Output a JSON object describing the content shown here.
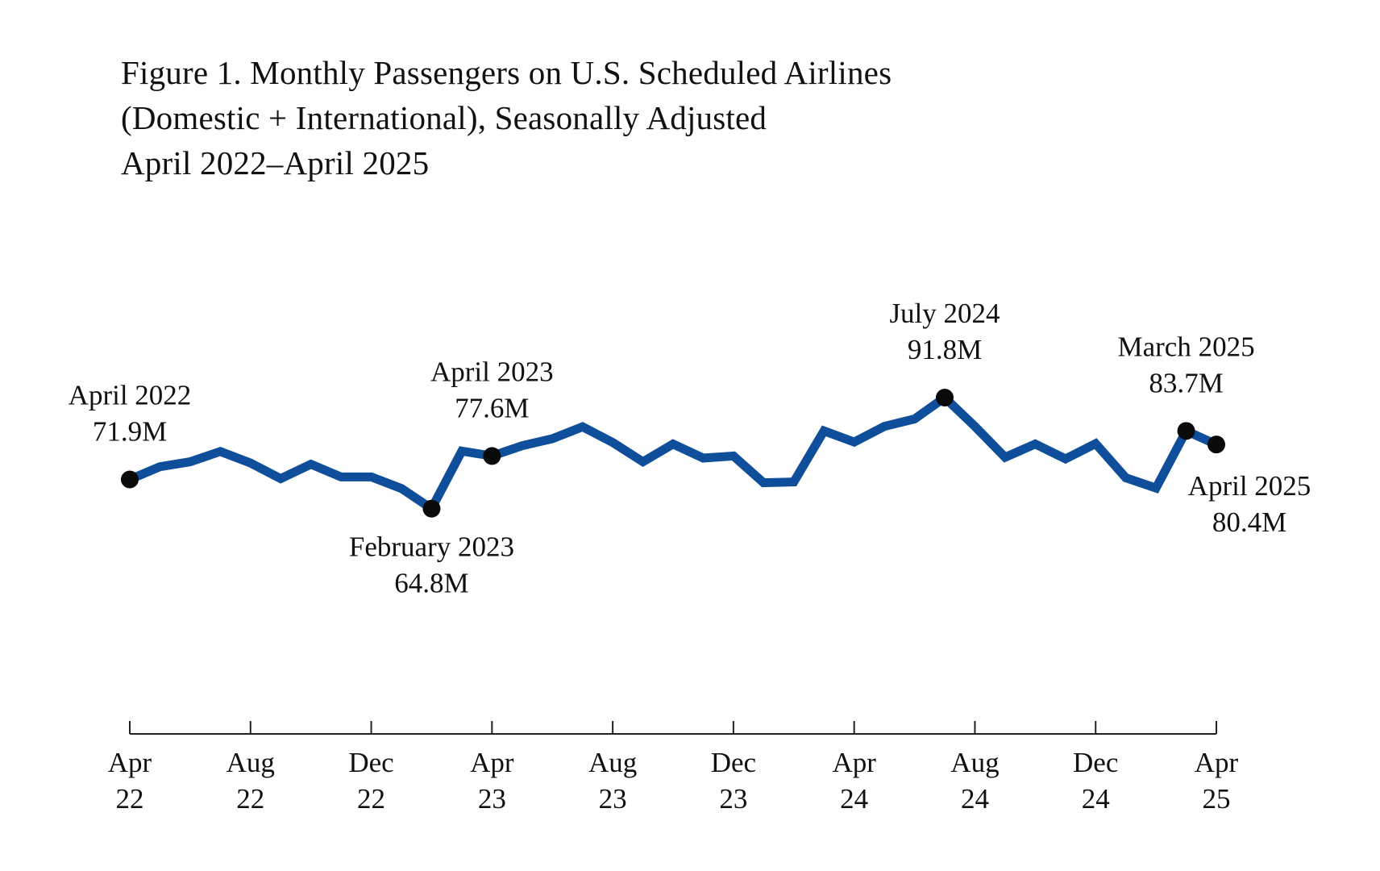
{
  "chart_data": {
    "type": "line",
    "title": [
      "Figure 1. Monthly Passengers on U.S. Scheduled Airlines",
      "(Domestic + International), Seasonally Adjusted",
      "April 2022–April 2025"
    ],
    "xlabel": "",
    "ylabel": "",
    "grid": false,
    "legend": "none",
    "units": "millions of passengers",
    "line_color": "#0F4E9B",
    "marker_color": "#0a0a0a",
    "x": [
      "Apr 2022",
      "May 2022",
      "Jun 2022",
      "Jul 2022",
      "Aug 2022",
      "Sep 2022",
      "Oct 2022",
      "Nov 2022",
      "Dec 2022",
      "Jan 2023",
      "Feb 2023",
      "Mar 2023",
      "Apr 2023",
      "May 2023",
      "Jun 2023",
      "Jul 2023",
      "Aug 2023",
      "Sep 2023",
      "Oct 2023",
      "Nov 2023",
      "Dec 2023",
      "Jan 2024",
      "Feb 2024",
      "Mar 2024",
      "Apr 2024",
      "May 2024",
      "Jun 2024",
      "Jul 2024",
      "Aug 2024",
      "Sep 2024",
      "Oct 2024",
      "Nov 2024",
      "Dec 2024",
      "Jan 2025",
      "Feb 2025",
      "Mar 2025",
      "Apr 2025"
    ],
    "series": [
      {
        "name": "Monthly passengers (SA)",
        "values": [
          71.9,
          75.0,
          76.2,
          78.7,
          75.9,
          72.1,
          75.6,
          72.5,
          72.5,
          69.7,
          64.8,
          78.8,
          77.6,
          80.1,
          81.8,
          84.7,
          80.9,
          76.2,
          80.5,
          77.1,
          77.6,
          71.1,
          71.3,
          83.7,
          81.0,
          84.8,
          86.6,
          91.8,
          84.8,
          77.3,
          80.5,
          76.9,
          80.6,
          72.3,
          69.8,
          83.7,
          80.4
        ]
      }
    ],
    "ylim": [
      40,
      110
    ],
    "xticks": [
      {
        "index": 0,
        "line1": "Apr",
        "line2": "22"
      },
      {
        "index": 4,
        "line1": "Aug",
        "line2": "22"
      },
      {
        "index": 8,
        "line1": "Dec",
        "line2": "22"
      },
      {
        "index": 12,
        "line1": "Apr",
        "line2": "23"
      },
      {
        "index": 16,
        "line1": "Aug",
        "line2": "23"
      },
      {
        "index": 20,
        "line1": "Dec",
        "line2": "23"
      },
      {
        "index": 24,
        "line1": "Apr",
        "line2": "24"
      },
      {
        "index": 28,
        "line1": "Aug",
        "line2": "24"
      },
      {
        "index": 32,
        "line1": "Dec",
        "line2": "24"
      },
      {
        "index": 36,
        "line1": "Apr",
        "line2": "25"
      }
    ],
    "annotations": [
      {
        "index": 0,
        "name": "annotation-april-2022",
        "line1": "April 2022",
        "line2": "71.9M",
        "placement": "above"
      },
      {
        "index": 10,
        "name": "annotation-february-2023",
        "line1": "February 2023",
        "line2": "64.8M",
        "placement": "below"
      },
      {
        "index": 12,
        "name": "annotation-april-2023",
        "line1": "April 2023",
        "line2": "77.6M",
        "placement": "above"
      },
      {
        "index": 27,
        "name": "annotation-july-2024",
        "line1": "July 2024",
        "line2": "91.8M",
        "placement": "above"
      },
      {
        "index": 35,
        "name": "annotation-march-2025",
        "line1": "March 2025",
        "line2": "83.7M",
        "placement": "above"
      },
      {
        "index": 36,
        "name": "annotation-april-2025",
        "line1": "April 2025",
        "line2": "80.4M",
        "placement": "below-right"
      }
    ]
  }
}
